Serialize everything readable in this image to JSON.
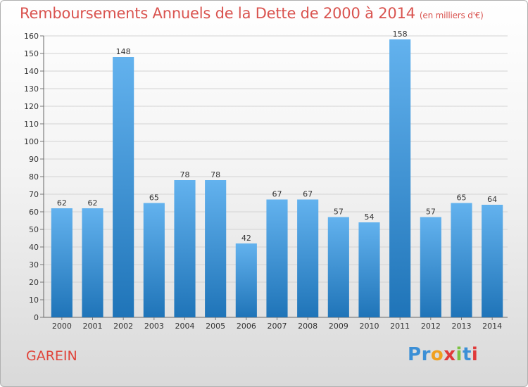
{
  "title": "Remboursements Annuels de la Dette de 2000 à 2014",
  "unit_note": "(en milliers d'€)",
  "commune": "GAREIN",
  "logo": {
    "text": "Proxiti",
    "letter_colors": [
      "#3b8fd6",
      "#3b8fd6",
      "#f0a020",
      "#e03a3a",
      "#7cc243",
      "#3b8fd6",
      "#e03a3a"
    ]
  },
  "colors": {
    "bar_top": "#63b2ee",
    "bar_bottom": "#1f74b8",
    "title": "#d9534f",
    "commune": "#e0443a"
  },
  "chart_data": {
    "type": "bar",
    "title": "Remboursements Annuels de la Dette de 2000 à 2014",
    "xlabel": "",
    "ylabel": "",
    "categories": [
      "2000",
      "2001",
      "2002",
      "2003",
      "2004",
      "2005",
      "2006",
      "2007",
      "2008",
      "2009",
      "2010",
      "2011",
      "2012",
      "2013",
      "2014"
    ],
    "values": [
      62,
      62,
      148,
      65,
      78,
      78,
      42,
      67,
      67,
      57,
      54,
      158,
      57,
      65,
      64
    ],
    "ylim": [
      0,
      160
    ],
    "yticks": [
      0,
      10,
      20,
      30,
      40,
      50,
      60,
      70,
      80,
      90,
      100,
      110,
      120,
      130,
      140,
      150,
      160
    ],
    "grid": true
  }
}
